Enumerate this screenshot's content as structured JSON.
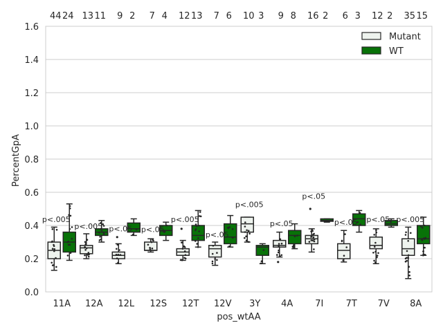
{
  "chart_data": {
    "type": "box",
    "title": "",
    "xlabel": "pos_wtAA",
    "ylabel": "PercentGpA",
    "ylim": [
      0,
      1.6
    ],
    "yticks": [
      0.0,
      0.2,
      0.4,
      0.6,
      0.8,
      1.0,
      1.2,
      1.4,
      1.6
    ],
    "ytick_labels": [
      "0.0",
      "0.2",
      "0.4",
      "0.6",
      "0.8",
      "1.0",
      "1.2",
      "1.4",
      "1.6"
    ],
    "grid": true,
    "legend_position": "top-right",
    "categories": [
      "11A",
      "12A",
      "12L",
      "12S",
      "12T",
      "12V",
      "3Y",
      "4A",
      "7I",
      "7T",
      "7V",
      "8A"
    ],
    "series": [
      {
        "name": "Mutant",
        "color": "#eef3ee",
        "counts": [
          "44",
          "13",
          "9",
          "7",
          "12",
          "7",
          "10",
          "9",
          "16",
          "6",
          "12",
          "35"
        ],
        "boxes": [
          {
            "whislo": 0.13,
            "q1": 0.2,
            "med": 0.25,
            "q3": 0.3,
            "whishi": 0.39,
            "fliers": []
          },
          {
            "whislo": 0.2,
            "q1": 0.23,
            "med": 0.265,
            "q3": 0.28,
            "whishi": 0.35,
            "fliers": []
          },
          {
            "whislo": 0.17,
            "q1": 0.2,
            "med": 0.22,
            "q3": 0.24,
            "whishi": 0.29,
            "fliers": [
              0.33
            ]
          },
          {
            "whislo": 0.24,
            "q1": 0.25,
            "med": 0.25,
            "q3": 0.3,
            "whishi": 0.32,
            "fliers": []
          },
          {
            "whislo": 0.19,
            "q1": 0.22,
            "med": 0.24,
            "q3": 0.26,
            "whishi": 0.31,
            "fliers": [
              0.38
            ]
          },
          {
            "whislo": 0.16,
            "q1": 0.21,
            "med": 0.26,
            "q3": 0.28,
            "whishi": 0.3,
            "fliers": []
          },
          {
            "whislo": 0.3,
            "q1": 0.36,
            "med": 0.41,
            "q3": 0.45,
            "whishi": 0.45,
            "fliers": []
          },
          {
            "whislo": 0.21,
            "q1": 0.27,
            "med": 0.28,
            "q3": 0.31,
            "whishi": 0.36,
            "fliers": [
              0.18
            ]
          },
          {
            "whislo": 0.24,
            "q1": 0.29,
            "med": 0.32,
            "q3": 0.34,
            "whishi": 0.38,
            "fliers": [
              0.5
            ]
          },
          {
            "whislo": 0.18,
            "q1": 0.2,
            "med": 0.25,
            "q3": 0.29,
            "whishi": 0.37,
            "fliers": []
          },
          {
            "whislo": 0.17,
            "q1": 0.26,
            "med": 0.28,
            "q3": 0.33,
            "whishi": 0.38,
            "fliers": []
          },
          {
            "whislo": 0.08,
            "q1": 0.22,
            "med": 0.26,
            "q3": 0.32,
            "whishi": 0.39,
            "fliers": []
          }
        ]
      },
      {
        "name": "WT",
        "color": "#087208",
        "counts": [
          "24",
          "11",
          "2",
          "4",
          "13",
          "6",
          "3",
          "8",
          "2",
          "3",
          "2",
          "15"
        ],
        "boxes": [
          {
            "whislo": 0.19,
            "q1": 0.24,
            "med": 0.3,
            "q3": 0.36,
            "whishi": 0.53,
            "fliers": []
          },
          {
            "whislo": 0.3,
            "q1": 0.34,
            "med": 0.36,
            "q3": 0.38,
            "whishi": 0.43,
            "fliers": []
          },
          {
            "whislo": 0.34,
            "q1": 0.36,
            "med": 0.38,
            "q3": 0.415,
            "whishi": 0.44,
            "fliers": []
          },
          {
            "whislo": 0.31,
            "q1": 0.34,
            "med": 0.37,
            "q3": 0.4,
            "whishi": 0.42,
            "fliers": []
          },
          {
            "whislo": 0.27,
            "q1": 0.31,
            "med": 0.34,
            "q3": 0.4,
            "whishi": 0.49,
            "fliers": []
          },
          {
            "whislo": 0.27,
            "q1": 0.29,
            "med": 0.33,
            "q3": 0.41,
            "whishi": 0.46,
            "fliers": []
          },
          {
            "whislo": 0.17,
            "q1": 0.22,
            "med": 0.27,
            "q3": 0.28,
            "whishi": 0.29,
            "fliers": []
          },
          {
            "whislo": 0.26,
            "q1": 0.29,
            "med": 0.34,
            "q3": 0.37,
            "whishi": 0.41,
            "fliers": []
          },
          {
            "whislo": 0.42,
            "q1": 0.425,
            "med": 0.43,
            "q3": 0.44,
            "whishi": 0.44,
            "fliers": []
          },
          {
            "whislo": 0.36,
            "q1": 0.4,
            "med": 0.44,
            "q3": 0.47,
            "whishi": 0.49,
            "fliers": []
          },
          {
            "whislo": 0.39,
            "q1": 0.4,
            "med": 0.41,
            "q3": 0.43,
            "whishi": 0.44,
            "fliers": []
          },
          {
            "whislo": 0.22,
            "q1": 0.29,
            "med": 0.32,
            "q3": 0.4,
            "whishi": 0.45,
            "fliers": []
          }
        ]
      }
    ],
    "annotations": [
      {
        "category": "11A",
        "text": "p<.005",
        "y": 0.42
      },
      {
        "category": "12A",
        "text": "p<.005",
        "y": 0.38
      },
      {
        "category": "12L",
        "text": "p<.05",
        "y": 0.365
      },
      {
        "category": "12S",
        "text": "p<.05",
        "y": 0.36
      },
      {
        "category": "12T",
        "text": "p<.005",
        "y": 0.42
      },
      {
        "category": "12V",
        "text": "p<.05",
        "y": 0.33
      },
      {
        "category": "3Y",
        "text": "p<.005",
        "y": 0.51
      },
      {
        "category": "4A",
        "text": "p<.05",
        "y": 0.395
      },
      {
        "category": "7I",
        "text": "p<.05",
        "y": 0.56
      },
      {
        "category": "7T",
        "text": "p<.05",
        "y": 0.405
      },
      {
        "category": "7V",
        "text": "p<.05",
        "y": 0.42
      },
      {
        "category": "8A",
        "text": "p<.005",
        "y": 0.42
      }
    ]
  }
}
